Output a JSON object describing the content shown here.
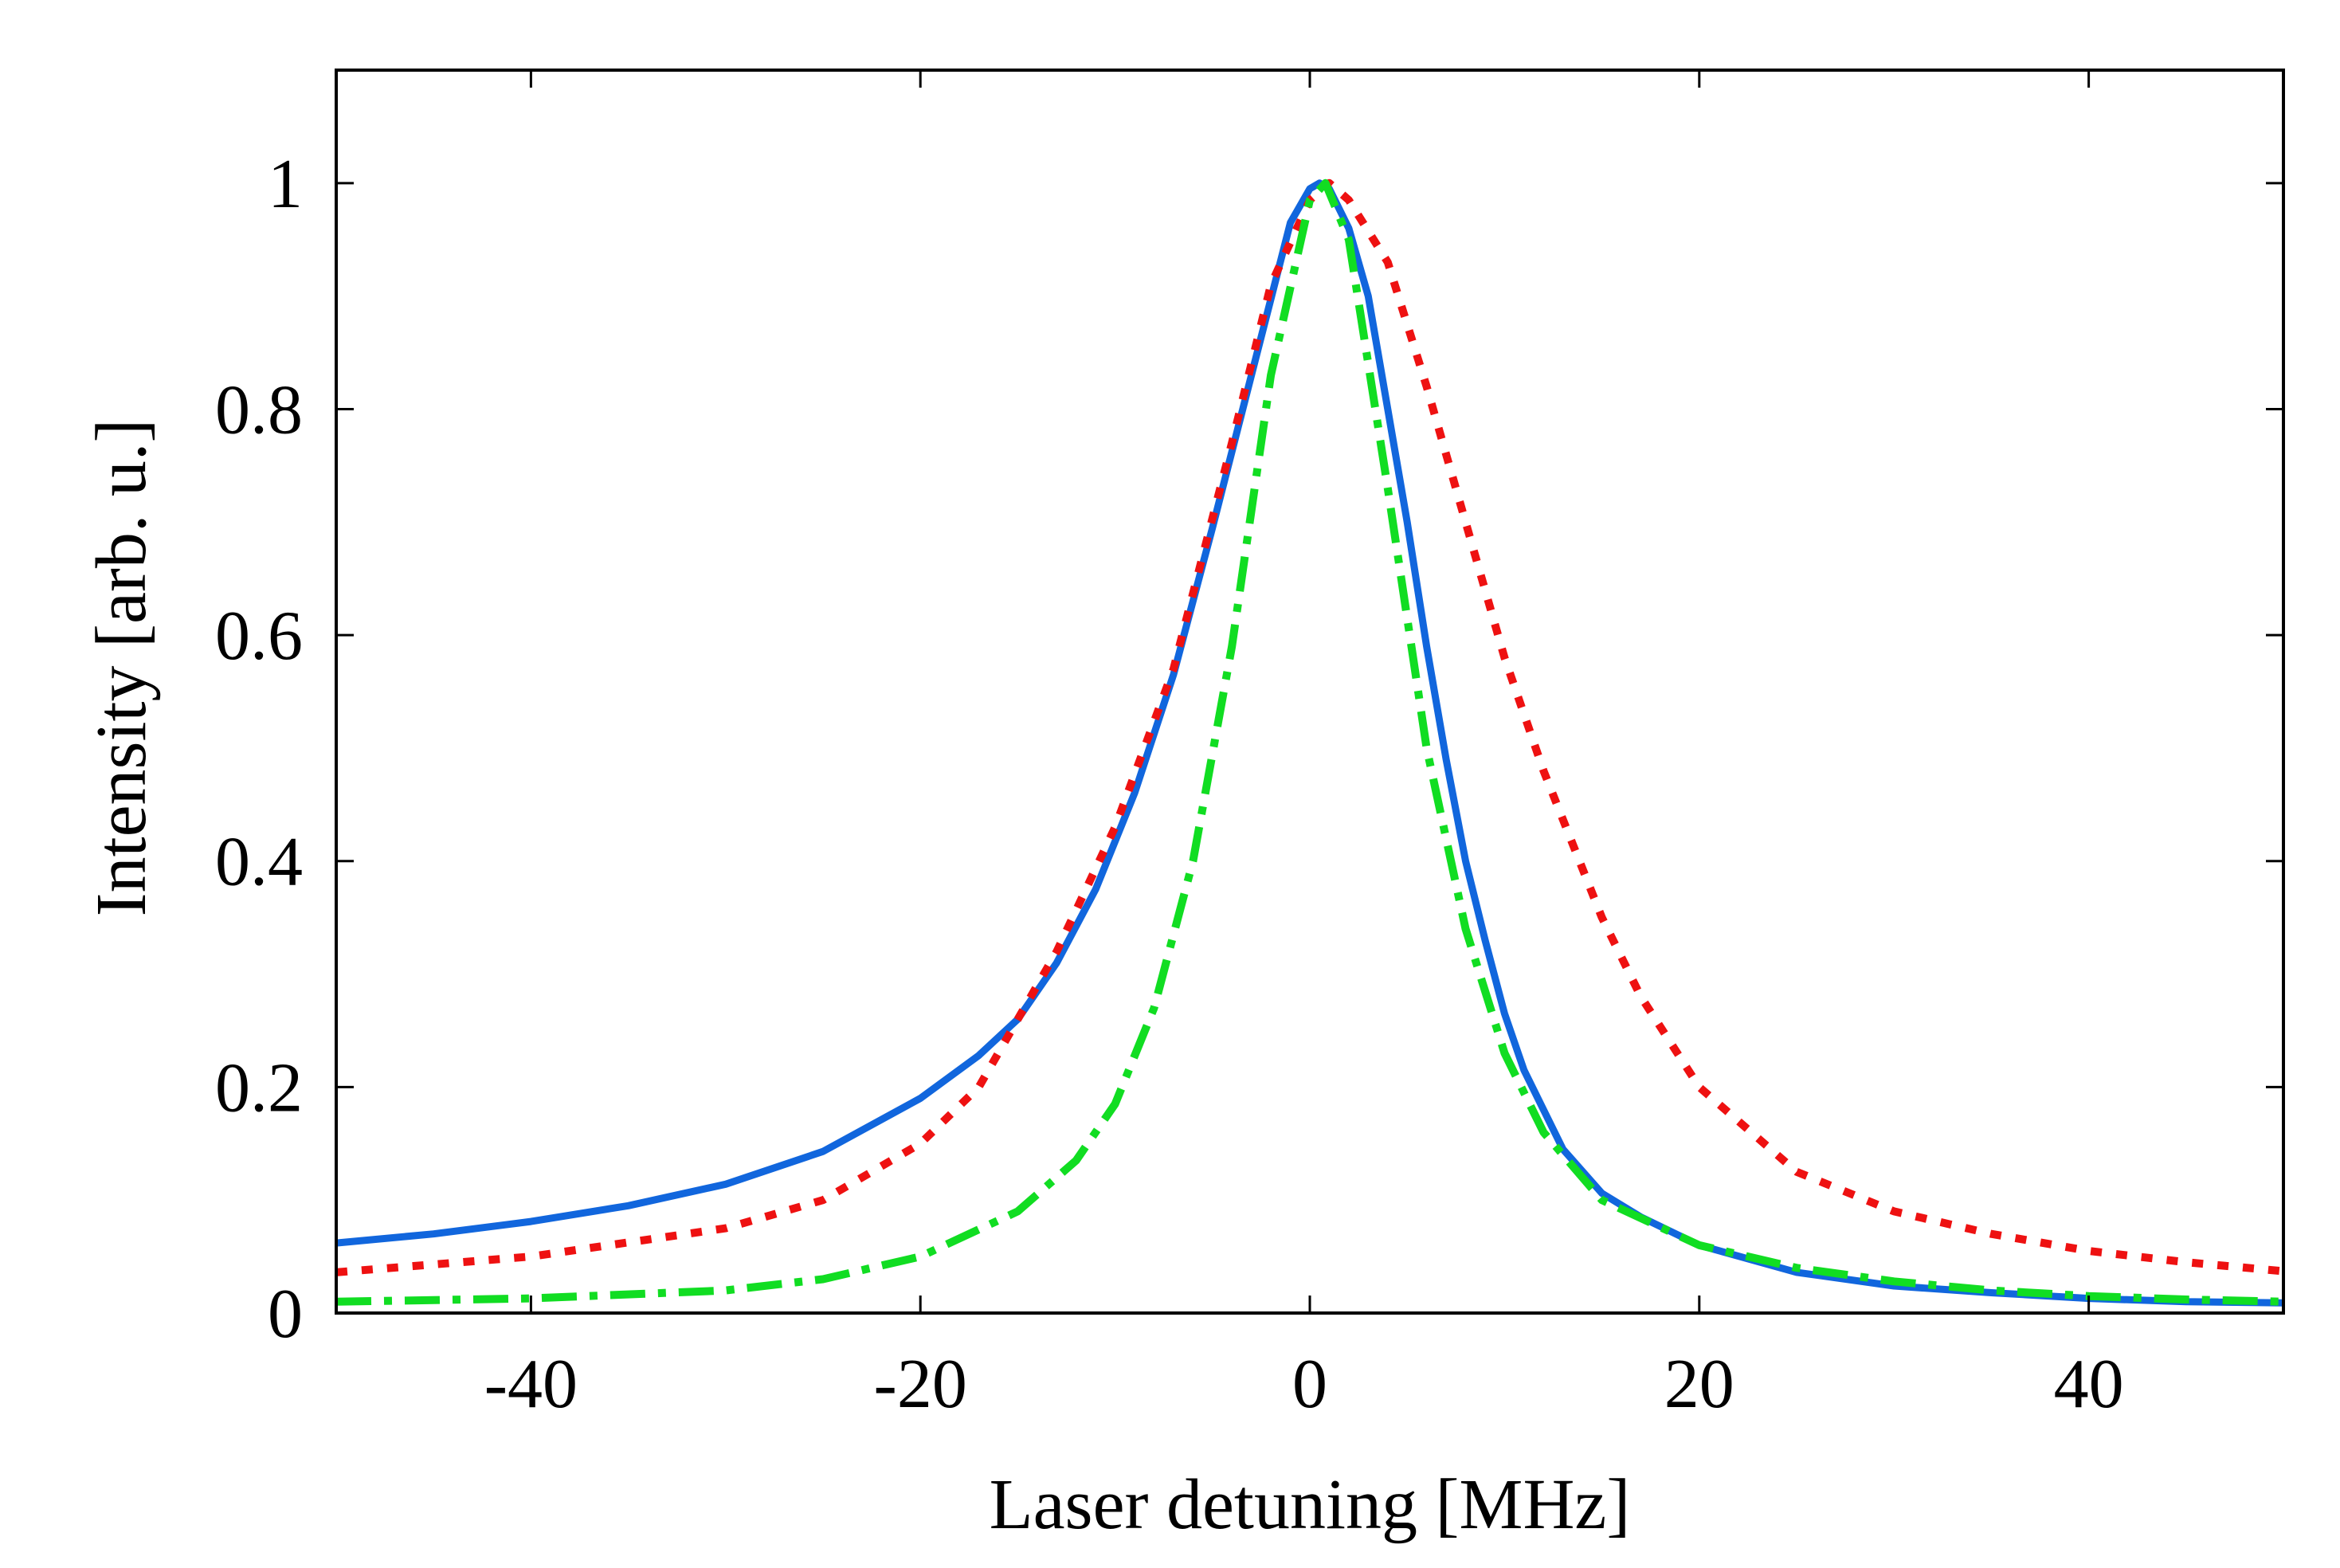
{
  "chart_data": {
    "type": "line",
    "title": "",
    "xlabel": "Laser detuning [MHz]",
    "ylabel": "Intensity [arb. u.]",
    "xlim": [
      -50,
      50
    ],
    "ylim": [
      0,
      1.1
    ],
    "xticks": [
      -40,
      -20,
      0,
      20,
      40
    ],
    "xtick_labels": [
      "-40",
      "-20",
      "0",
      "20",
      "40"
    ],
    "yticks": [
      0,
      0.2,
      0.4,
      0.6,
      0.8,
      1
    ],
    "ytick_labels": [
      "0",
      "0.2",
      "0.4",
      "0.6",
      "0.8",
      "1"
    ],
    "grid": false,
    "legend": "none",
    "series": [
      {
        "name": "blue solid",
        "color": "#1166dd",
        "style": "solid",
        "x": [
          -50,
          -45,
          -40,
          -35,
          -30,
          -25,
          -20,
          -17,
          -15,
          -13,
          -11,
          -9,
          -7,
          -5,
          -3,
          -1,
          0,
          0.5,
          1,
          2,
          3,
          4,
          5,
          6,
          7,
          8,
          9,
          10,
          11,
          13,
          15,
          17,
          20,
          25,
          30,
          35,
          40,
          45,
          50
        ],
        "y": [
          0.062,
          0.07,
          0.081,
          0.095,
          0.114,
          0.143,
          0.19,
          0.228,
          0.26,
          0.31,
          0.375,
          0.46,
          0.565,
          0.695,
          0.83,
          0.965,
          0.995,
          1.0,
          0.995,
          0.96,
          0.9,
          0.8,
          0.7,
          0.59,
          0.49,
          0.4,
          0.33,
          0.265,
          0.215,
          0.145,
          0.106,
          0.085,
          0.06,
          0.036,
          0.024,
          0.018,
          0.013,
          0.01,
          0.009
        ]
      },
      {
        "name": "red dotted",
        "color": "#ee1111",
        "style": "dotted",
        "x": [
          -50,
          -40,
          -30,
          -25,
          -20,
          -17,
          -15,
          -13,
          -10,
          -7,
          -4,
          -2,
          0,
          1,
          2,
          4,
          6,
          8,
          10,
          12,
          15,
          17,
          20,
          25,
          30,
          35,
          40,
          45,
          50
        ],
        "y": [
          0.036,
          0.05,
          0.075,
          0.1,
          0.15,
          0.2,
          0.26,
          0.32,
          0.43,
          0.57,
          0.77,
          0.91,
          0.985,
          1.0,
          0.985,
          0.93,
          0.82,
          0.7,
          0.58,
          0.48,
          0.35,
          0.28,
          0.2,
          0.125,
          0.09,
          0.07,
          0.055,
          0.045,
          0.037
        ]
      },
      {
        "name": "green dash-dot",
        "color": "#11dd22",
        "style": "dashdot",
        "x": [
          -50,
          -40,
          -30,
          -25,
          -20,
          -15,
          -12,
          -10,
          -8,
          -6,
          -4,
          -2,
          0,
          0.8,
          2,
          4,
          6,
          8,
          10,
          12,
          15,
          20,
          25,
          30,
          35,
          40,
          45,
          50
        ],
        "y": [
          0.01,
          0.013,
          0.02,
          0.03,
          0.05,
          0.09,
          0.135,
          0.185,
          0.27,
          0.4,
          0.59,
          0.83,
          0.985,
          1.0,
          0.95,
          0.73,
          0.5,
          0.34,
          0.23,
          0.16,
          0.1,
          0.06,
          0.04,
          0.028,
          0.02,
          0.015,
          0.012,
          0.01
        ]
      }
    ]
  }
}
